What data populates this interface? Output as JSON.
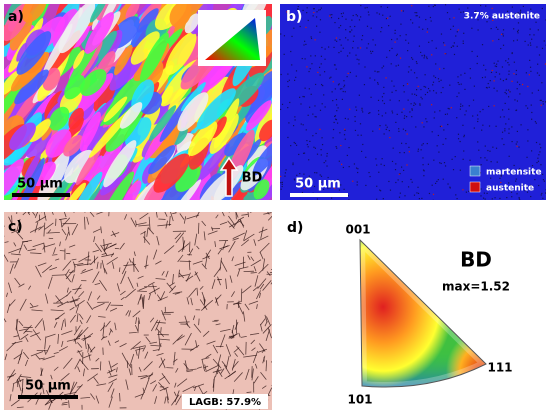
{
  "panels": [
    {
      "label": "a)",
      "scale_bar": "50 µm",
      "arrow_label": "BD"
    },
    {
      "label": "b)",
      "note": "3.7% austenite",
      "scale_bar": "50 µm",
      "legend": [
        "martensite",
        "austenite"
      ]
    },
    {
      "label": "c)",
      "scale_bar": "50 µm",
      "note": "LAGB: 57.9%"
    },
    {
      "label": "d)",
      "corners": [
        "001",
        "111",
        "101"
      ],
      "direction": "BD",
      "max": "max=1.52"
    }
  ]
}
